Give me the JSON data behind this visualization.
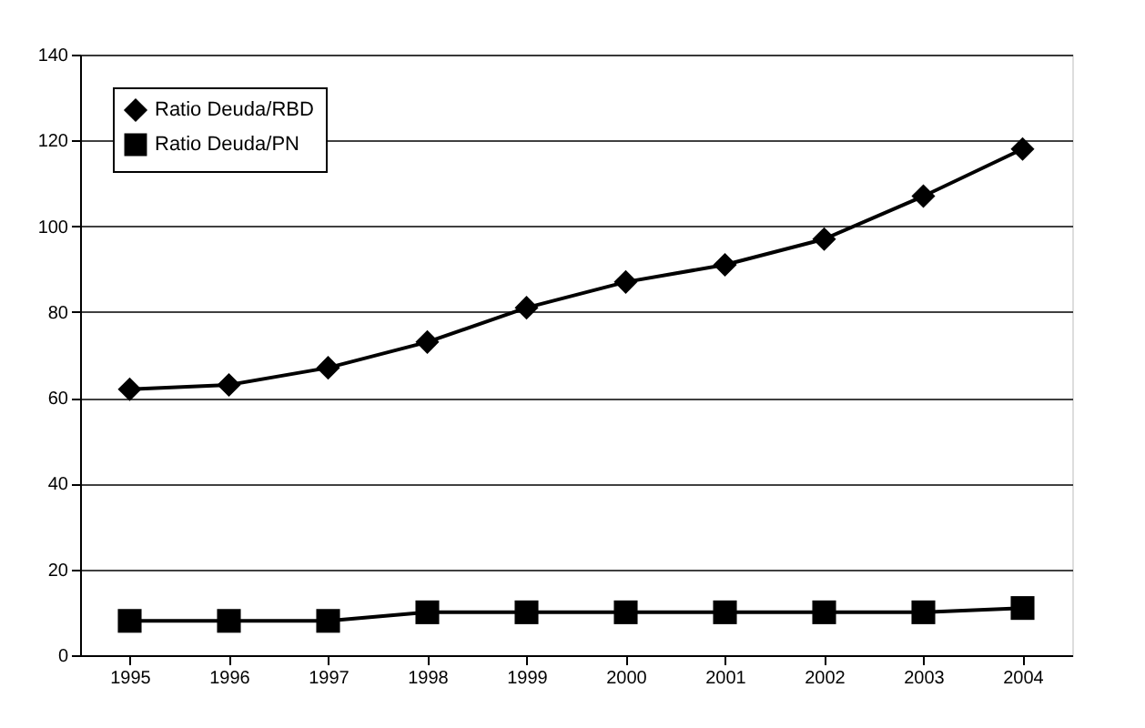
{
  "chart_data": {
    "type": "line",
    "categories": [
      "1995",
      "1996",
      "1997",
      "1998",
      "1999",
      "2000",
      "2001",
      "2002",
      "2003",
      "2004"
    ],
    "series": [
      {
        "name": "Ratio Deuda/RBD",
        "color": "#000000",
        "marker": "diamond",
        "values": [
          62,
          63,
          67,
          73,
          81,
          87,
          91,
          97,
          107,
          118
        ]
      },
      {
        "name": "Ratio Deuda/PN",
        "color": "#000000",
        "marker": "square",
        "values": [
          8,
          8,
          8,
          10,
          10,
          10,
          10,
          10,
          10,
          11
        ]
      }
    ],
    "ylim": [
      0,
      140
    ],
    "yticks": [
      0,
      20,
      40,
      60,
      80,
      100,
      120,
      140
    ],
    "grid": "y",
    "legend": "top left",
    "line_style": "solid"
  }
}
